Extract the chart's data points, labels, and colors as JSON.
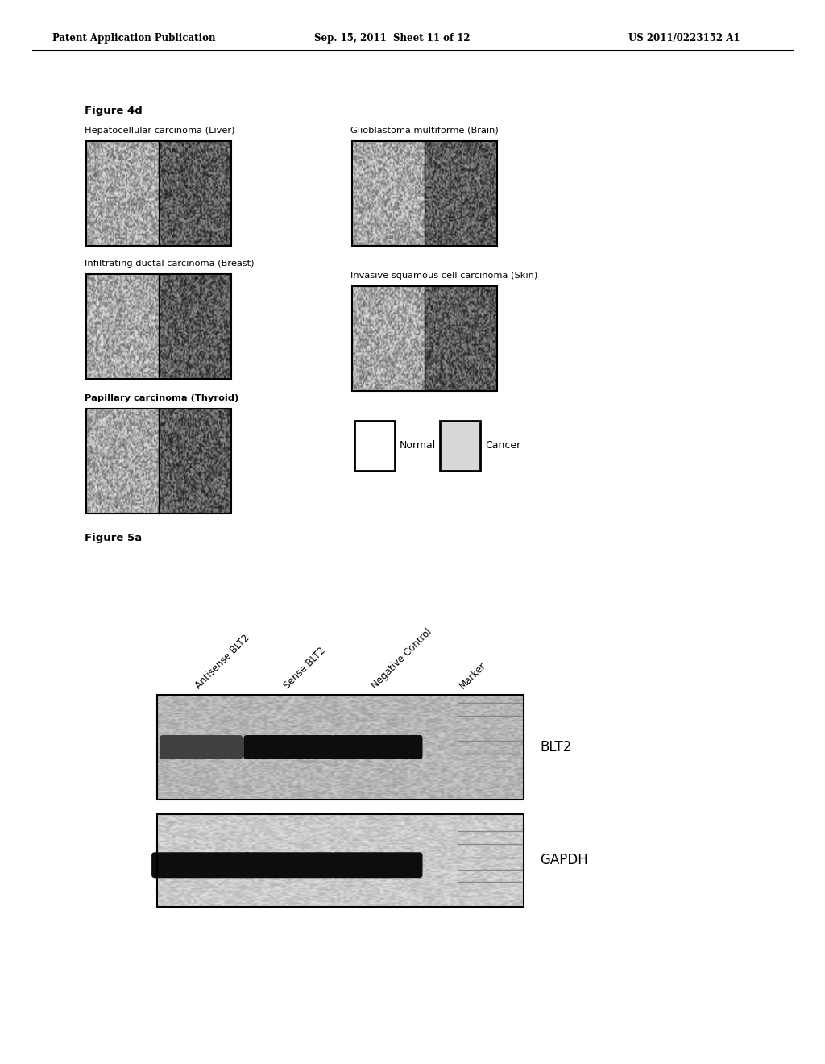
{
  "page_header_left": "Patent Application Publication",
  "page_header_mid": "Sep. 15, 2011  Sheet 11 of 12",
  "page_header_right": "US 2011/0223152 A1",
  "figure4d_label": "Figure 4d",
  "figure5a_label": "Figure 5a",
  "panel_labels": [
    "Hepatocellular carcinoma (Liver)",
    "Glioblastoma multiforme (Brain)",
    "Infiltrating ductal carcinoma (Breast)",
    "Invasive squamous cell carcinoma (Skin)",
    "Papillary carcinoma (Thyroid)"
  ],
  "legend_normal": "Normal",
  "legend_cancer": "Cancer",
  "gel_labels_top": [
    "Antisense BLT2",
    "Sense BLT2",
    "Negative Control",
    "Marker"
  ],
  "gel_band_labels": [
    "BLT2",
    "GAPDH"
  ],
  "background_color": "#ffffff",
  "text_color": "#000000",
  "header_font_size": 8.5,
  "label_font_size": 8.5,
  "figure_label_font_size": 9.5
}
